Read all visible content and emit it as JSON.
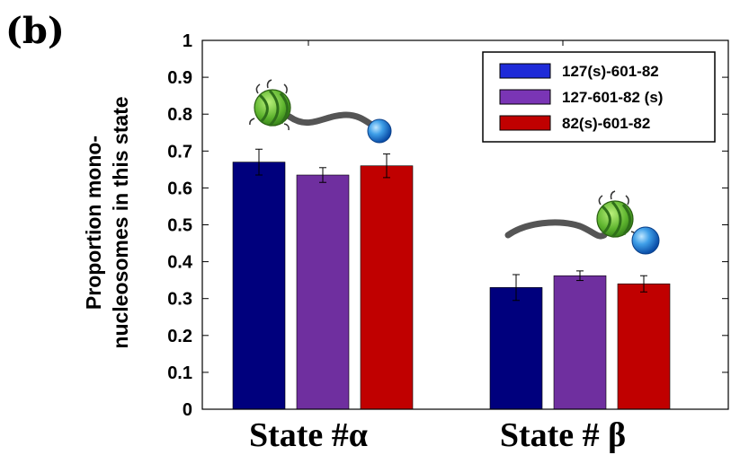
{
  "panel_label": "(b)",
  "colors": {
    "series_1": "#00007d",
    "series_2": "#6f2f9f",
    "series_3": "#c00000"
  },
  "chart_data": {
    "type": "bar",
    "categories": [
      "State #α",
      "State # β"
    ],
    "ylabel_lines": [
      "Proportion  mono-",
      "nucleosomes in this state"
    ],
    "ylim": [
      0,
      1
    ],
    "yticks": [
      "0",
      "0.1",
      "0.2",
      "0.3",
      "0.4",
      "0.5",
      "0.6",
      "0.7",
      "0.8",
      "0.9",
      "1"
    ],
    "series": [
      {
        "name": "127(s)-601-82",
        "values": [
          0.67,
          0.33
        ],
        "errors": [
          0.035,
          0.035
        ]
      },
      {
        "name": "127-601-82 (s)",
        "values": [
          0.635,
          0.362
        ],
        "errors": [
          0.02,
          0.013
        ]
      },
      {
        "name": "82(s)-601-82",
        "values": [
          0.66,
          0.34
        ],
        "errors": [
          0.032,
          0.022
        ]
      }
    ],
    "legend_position": "top-right",
    "grid": false
  }
}
